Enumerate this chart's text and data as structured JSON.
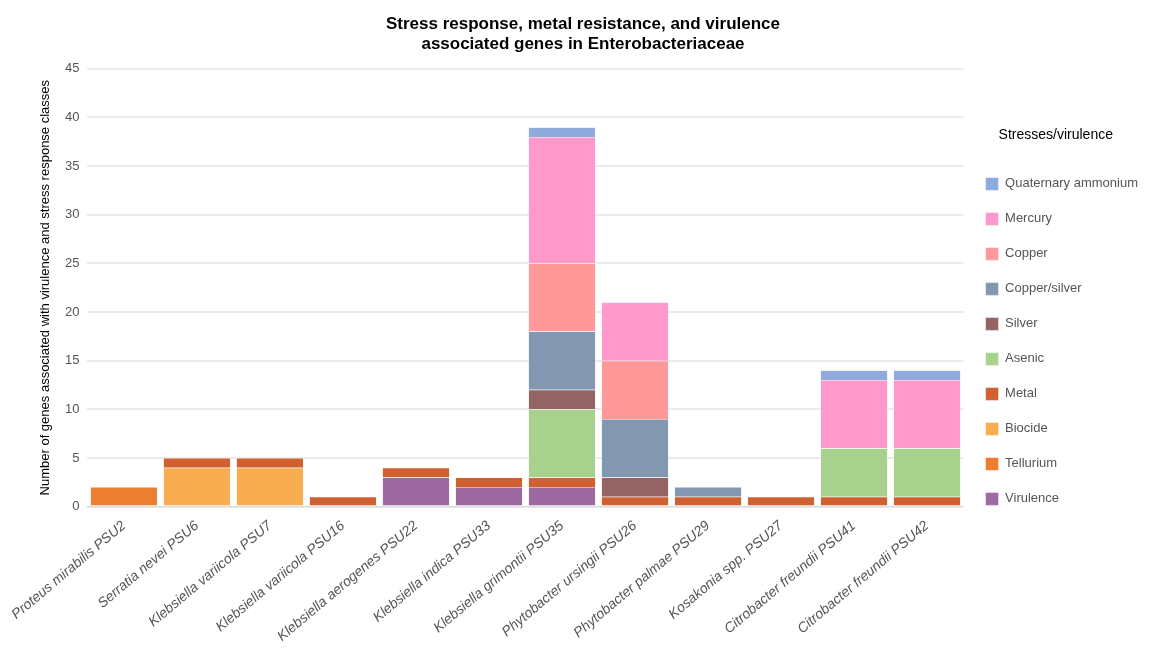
{
  "chart_data": {
    "type": "bar",
    "stacked": true,
    "title": "Stress response, metal resistance, and virulence associated genes in Enterobacteriaceae",
    "ylabel": "Number of genes associated with virulence and stress response classes",
    "legend_title": "Stresses/virulence",
    "legend": "right",
    "grid": "y",
    "categories": [
      "Proteus mirabilis PSU2",
      "Serratia nevei PSU6",
      "Klebsiella variicola PSU7",
      "Klebsiella variicola PSU16",
      "Klebsiella aerogenes PSU22",
      "Klebsiella indica PSU33",
      "Klebsiella grimontii PSU35",
      "Phytobacter ursingii PSU26",
      "Phytobacter palmae PSU29",
      "Kosakonia spp. PSU27",
      "Citrobacter freundii PSU41",
      "Citrobacter freundii PSU42"
    ],
    "ylim": [
      0,
      45
    ],
    "yticks": [
      0,
      5,
      10,
      15,
      20,
      25,
      30,
      35,
      40,
      45
    ],
    "series": [
      {
        "name": "Virulence",
        "color": "#9e68a0",
        "values": [
          0,
          0,
          0,
          0,
          3,
          2,
          2,
          0,
          0,
          0,
          0,
          0
        ]
      },
      {
        "name": "Tellurium",
        "color": "#ed7d31",
        "values": [
          2,
          0,
          0,
          0,
          0,
          0,
          0,
          0,
          0,
          0,
          0,
          0
        ]
      },
      {
        "name": "Biocide",
        "color": "#f8ad50",
        "values": [
          0,
          4,
          4,
          0,
          0,
          0,
          0,
          0,
          0,
          0,
          0,
          0
        ]
      },
      {
        "name": "Metal",
        "color": "#d06030",
        "values": [
          0,
          1,
          1,
          1,
          1,
          1,
          1,
          1,
          1,
          1,
          1,
          1
        ]
      },
      {
        "name": "Asenic",
        "color": "#a9d18e",
        "values": [
          0,
          0,
          0,
          0,
          0,
          0,
          7,
          0,
          0,
          0,
          5,
          5
        ]
      },
      {
        "name": "Silver",
        "color": "#946464",
        "values": [
          0,
          0,
          0,
          0,
          0,
          0,
          2,
          2,
          0,
          0,
          0,
          0
        ]
      },
      {
        "name": "Copper/silver",
        "color": "#8497b0",
        "values": [
          0,
          0,
          0,
          0,
          0,
          0,
          6,
          6,
          1,
          0,
          0,
          0
        ]
      },
      {
        "name": "Copper",
        "color": "#ff9999",
        "values": [
          0,
          0,
          0,
          0,
          0,
          0,
          7,
          6,
          0,
          0,
          0,
          0
        ]
      },
      {
        "name": "Mercury",
        "color": "#ff99cc",
        "values": [
          0,
          0,
          0,
          0,
          0,
          0,
          13,
          6,
          0,
          0,
          7,
          7
        ]
      },
      {
        "name": "Quaternary ammonium",
        "color": "#8faadc",
        "values": [
          0,
          0,
          0,
          0,
          0,
          0,
          1,
          0,
          0,
          0,
          1,
          1
        ]
      }
    ]
  }
}
